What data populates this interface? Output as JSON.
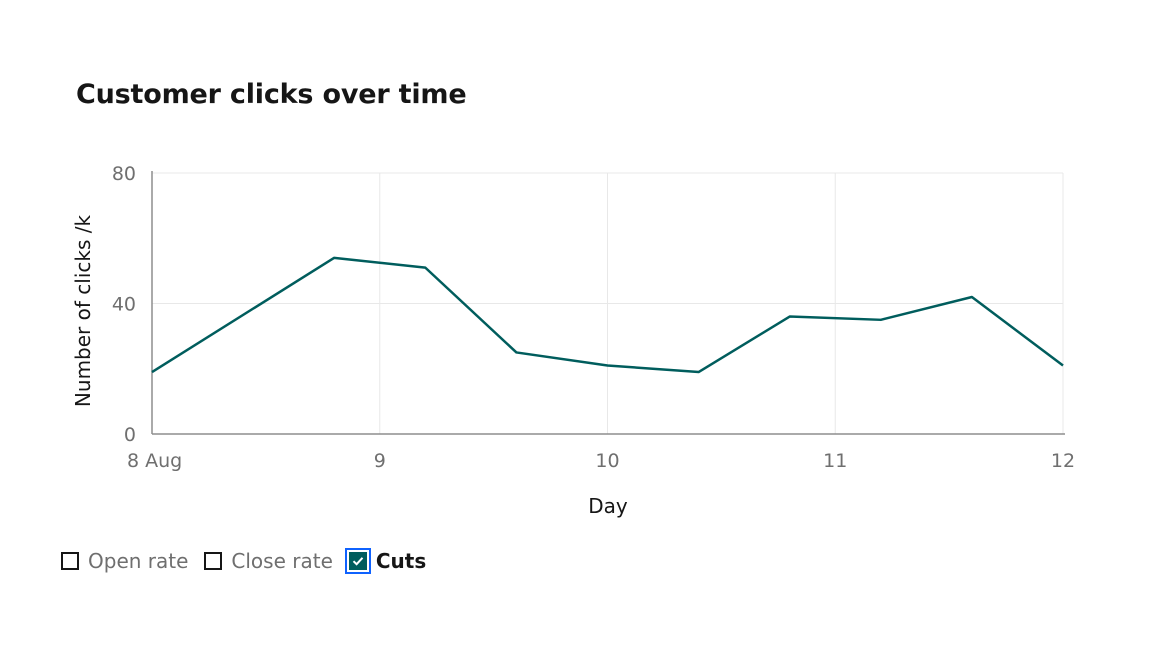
{
  "chart_data": {
    "type": "line",
    "title": "Customer clicks over time",
    "xlabel": "Day",
    "ylabel": "Number of clicks /k",
    "x_ticks": [
      "8 Aug",
      "9",
      "10",
      "11",
      "12"
    ],
    "y_ticks": [
      "0",
      "40",
      "80"
    ],
    "xlim": [
      8,
      12
    ],
    "ylim": [
      0,
      80
    ],
    "grid": true,
    "series": [
      {
        "name": "Cuts",
        "color": "#005d5d",
        "x": [
          8.0,
          8.8,
          9.2,
          9.6,
          10.0,
          10.4,
          10.8,
          11.2,
          11.6,
          12.0
        ],
        "y": [
          19,
          54,
          51,
          25,
          21,
          19,
          36,
          35,
          42,
          21
        ]
      }
    ]
  },
  "legend": {
    "items": [
      {
        "label": "Open rate",
        "checked": false
      },
      {
        "label": "Close rate",
        "checked": false
      },
      {
        "label": "Cuts",
        "checked": true
      }
    ]
  }
}
